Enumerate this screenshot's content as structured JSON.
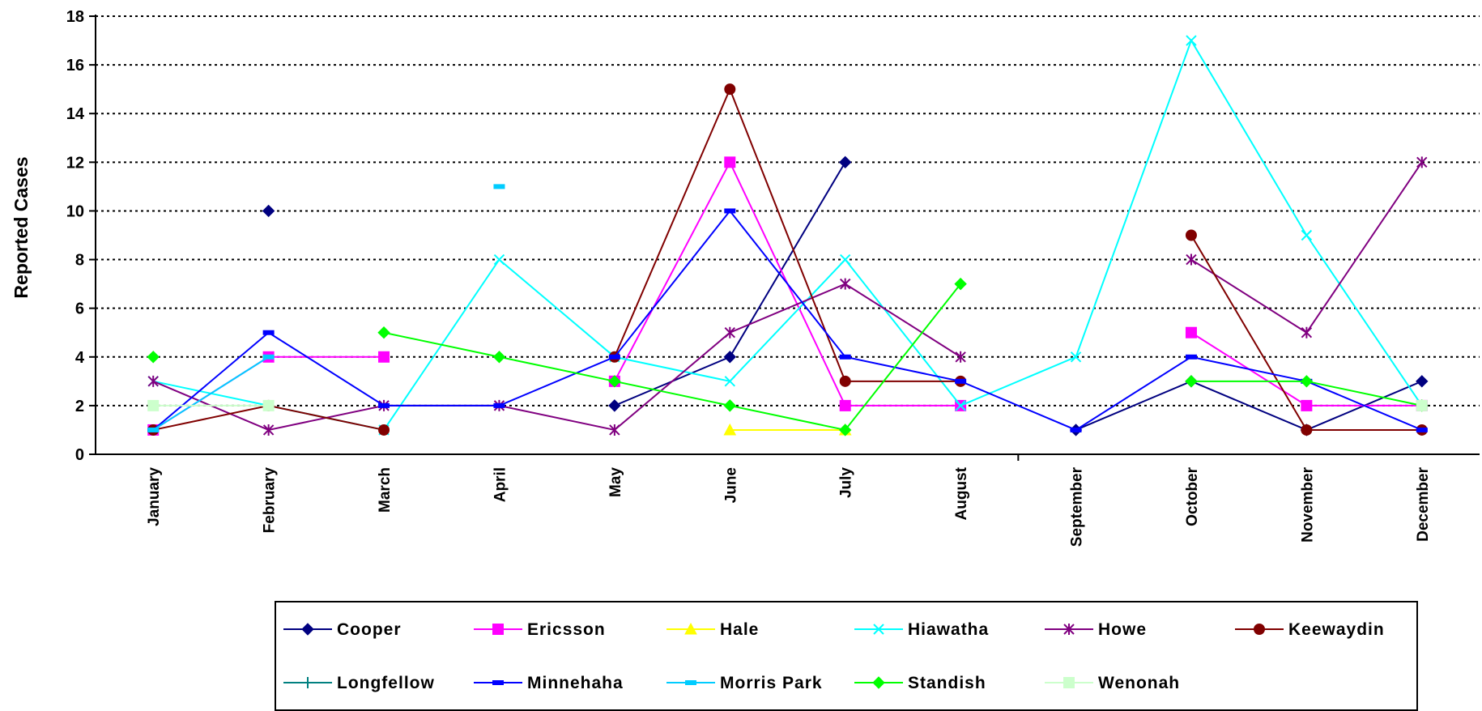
{
  "chart_data": {
    "type": "line",
    "title": "",
    "xlabel": "",
    "ylabel": "Reported Cases",
    "ylim": [
      0,
      18
    ],
    "y_ticks": [
      0,
      2,
      4,
      6,
      8,
      10,
      12,
      14,
      16,
      18
    ],
    "grid": "horizontal dotted",
    "legend_position": "bottom",
    "categories": [
      "January",
      "February",
      "March",
      "April",
      "May",
      "June",
      "July",
      "August",
      "September",
      "October",
      "November",
      "December"
    ],
    "series": [
      {
        "name": "Cooper",
        "color": "#000080",
        "marker": "diamond",
        "values": [
          null,
          10,
          null,
          null,
          2,
          4,
          12,
          null,
          1,
          3,
          1,
          3
        ]
      },
      {
        "name": "Ericsson",
        "color": "#ff00ff",
        "marker": "square",
        "values": [
          1,
          4,
          4,
          null,
          3,
          12,
          2,
          2,
          null,
          5,
          2,
          2
        ]
      },
      {
        "name": "Hale",
        "color": "#ffff00",
        "marker": "triangle",
        "values": [
          null,
          null,
          null,
          null,
          null,
          1,
          1,
          null,
          null,
          null,
          null,
          null
        ]
      },
      {
        "name": "Hiawatha",
        "color": "#00ffff",
        "marker": "x",
        "values": [
          3,
          2,
          1,
          8,
          4,
          3,
          8,
          2,
          4,
          17,
          9,
          2
        ]
      },
      {
        "name": "Howe",
        "color": "#800080",
        "marker": "star",
        "values": [
          3,
          1,
          2,
          2,
          1,
          5,
          7,
          4,
          null,
          8,
          5,
          12
        ]
      },
      {
        "name": "Keewaydin",
        "color": "#800000",
        "marker": "circle",
        "values": [
          1,
          2,
          1,
          null,
          4,
          15,
          3,
          3,
          null,
          9,
          1,
          1
        ]
      },
      {
        "name": "Longfellow",
        "color": "#008080",
        "marker": "plus",
        "values": [
          null,
          null,
          null,
          null,
          null,
          null,
          null,
          null,
          null,
          null,
          null,
          null
        ]
      },
      {
        "name": "Minnehaha",
        "color": "#0000ff",
        "marker": "dash",
        "values": [
          1,
          5,
          2,
          2,
          4,
          10,
          4,
          3,
          1,
          4,
          3,
          1
        ]
      },
      {
        "name": "Morris Park",
        "color": "#00ccff",
        "marker": "dash",
        "values": [
          1,
          4,
          null,
          11,
          null,
          null,
          null,
          null,
          null,
          null,
          null,
          null
        ]
      },
      {
        "name": "Standish",
        "color": "#00ff00",
        "marker": "diamond",
        "values": [
          4,
          null,
          5,
          4,
          3,
          2,
          1,
          7,
          null,
          3,
          3,
          2
        ]
      },
      {
        "name": "Wenonah",
        "color": "#ccffcc",
        "marker": "square",
        "values": [
          2,
          2,
          null,
          null,
          null,
          null,
          null,
          null,
          null,
          null,
          null,
          2
        ]
      }
    ]
  }
}
